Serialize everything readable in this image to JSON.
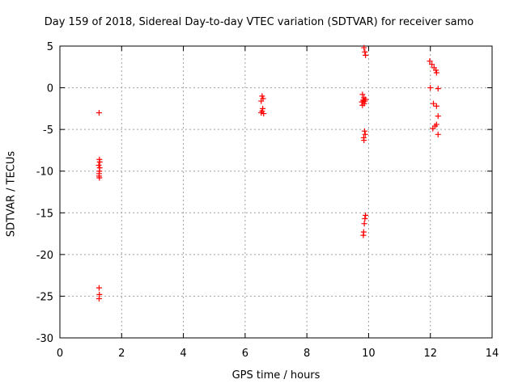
{
  "chart_data": {
    "type": "scatter",
    "title": "Day 159 of 2018, Sidereal Day-to-day VTEC variation (SDTVAR) for receiver samo",
    "xlabel": "GPS time / hours",
    "ylabel": "SDTVAR / TECUs",
    "xlim": [
      0,
      14
    ],
    "ylim": [
      -30,
      5
    ],
    "xticks": [
      0,
      2,
      4,
      6,
      8,
      10,
      12,
      14
    ],
    "yticks": [
      -30,
      -25,
      -20,
      -15,
      -10,
      -5,
      0,
      5
    ],
    "grid": true,
    "marker": "+",
    "series": [
      {
        "name": "SDTVAR",
        "color": "#ff0000",
        "points": [
          [
            1.27,
            -3.0
          ],
          [
            1.28,
            -8.6
          ],
          [
            1.29,
            -8.9
          ],
          [
            1.29,
            -9.6
          ],
          [
            1.28,
            -10.0
          ],
          [
            1.27,
            -10.3
          ],
          [
            1.27,
            -10.6
          ],
          [
            1.28,
            -10.8
          ],
          [
            1.26,
            -9.3
          ],
          [
            1.27,
            -24.0
          ],
          [
            1.28,
            -24.8
          ],
          [
            1.27,
            -25.3
          ],
          [
            6.55,
            -1.0
          ],
          [
            6.58,
            -1.3
          ],
          [
            6.52,
            -1.6
          ],
          [
            6.57,
            -2.5
          ],
          [
            6.55,
            -2.8
          ],
          [
            6.52,
            -3.0
          ],
          [
            6.6,
            -3.1
          ],
          [
            9.85,
            4.8
          ],
          [
            9.88,
            4.3
          ],
          [
            9.9,
            3.9
          ],
          [
            9.8,
            -0.8
          ],
          [
            9.85,
            -1.2
          ],
          [
            9.82,
            -1.5
          ],
          [
            9.78,
            -1.7
          ],
          [
            9.86,
            -1.9
          ],
          [
            9.8,
            -2.1
          ],
          [
            9.9,
            -1.4
          ],
          [
            9.88,
            -1.6
          ],
          [
            9.87,
            -5.2
          ],
          [
            9.89,
            -5.6
          ],
          [
            9.84,
            -6.0
          ],
          [
            9.85,
            -6.3
          ],
          [
            9.9,
            -15.3
          ],
          [
            9.88,
            -15.7
          ],
          [
            9.86,
            -16.3
          ],
          [
            9.84,
            -17.3
          ],
          [
            9.83,
            -17.7
          ],
          [
            11.98,
            3.2
          ],
          [
            12.05,
            2.8
          ],
          [
            12.12,
            2.4
          ],
          [
            12.18,
            2.1
          ],
          [
            12.2,
            1.8
          ],
          [
            12.0,
            0.0
          ],
          [
            12.25,
            -0.1
          ],
          [
            12.1,
            -1.9
          ],
          [
            12.2,
            -2.2
          ],
          [
            12.25,
            -3.4
          ],
          [
            12.2,
            -4.4
          ],
          [
            12.15,
            -4.6
          ],
          [
            12.08,
            -4.9
          ],
          [
            12.25,
            -5.6
          ]
        ]
      }
    ]
  }
}
